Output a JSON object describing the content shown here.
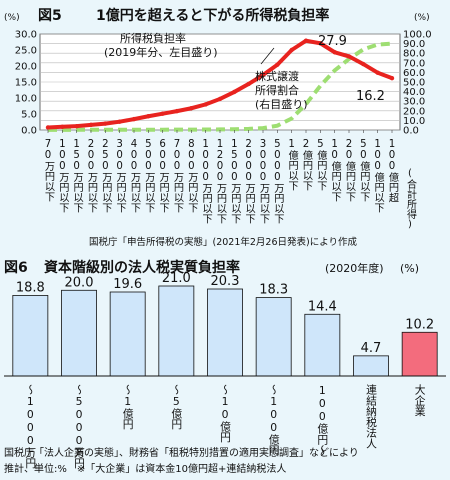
{
  "chart_data": [
    {
      "type": "line",
      "figure_no": "図5",
      "title": "1億円を超えると下がる所得税負担率",
      "left_axis_unit": "(%)",
      "right_axis_unit": "(%)",
      "ylim_left": [
        0,
        30
      ],
      "ylim_right": [
        0,
        100
      ],
      "left_ticks": [
        "30.0",
        "25.0",
        "20.0",
        "15.0",
        "10.0",
        "5.0",
        "0.0"
      ],
      "right_ticks": [
        "100.0",
        "90.0",
        "80.0",
        "70.0",
        "60.0",
        "50.0",
        "40.0",
        "30.0",
        "20.0",
        "10.0",
        "0.0"
      ],
      "categories": [
        "70万円以下",
        "100万円以下",
        "150万円以下",
        "200万円以下",
        "250万円以下",
        "300万円以下",
        "400万円以下",
        "500万円以下",
        "600万円以下",
        "700万円以下",
        "800万円以下",
        "1000万円以下",
        "1200万円以下",
        "1500万円以下",
        "2000万円以下",
        "3000万円以下",
        "5000万円以下",
        "1億円以下",
        "2億円以下",
        "5億円以下",
        "10億円以下",
        "20億円以下",
        "50億円以下",
        "100億円以下",
        "100億円超"
      ],
      "xlabel_extra": "(合計所得)",
      "series": [
        {
          "label_lines": [
            "所得税負担率",
            "(2019年分、左目盛り)"
          ],
          "color": "#e8231f",
          "axis": "left",
          "values": [
            0.8,
            1.0,
            1.2,
            1.6,
            2.0,
            2.6,
            3.4,
            4.3,
            5.1,
            5.9,
            6.8,
            8.0,
            9.7,
            11.9,
            14.4,
            17.2,
            20.4,
            25.0,
            27.9,
            27.1,
            24.3,
            23.0,
            20.6,
            17.9,
            16.2
          ]
        },
        {
          "label_lines": [
            "株式譲渡",
            "所得割合",
            "(右目盛り)"
          ],
          "color": "#9ede72",
          "axis": "right",
          "values": [
            0.1,
            0.1,
            0.2,
            0.2,
            0.2,
            0.2,
            0.3,
            0.3,
            0.3,
            0.4,
            0.4,
            0.5,
            0.6,
            0.8,
            1.2,
            2.0,
            4.5,
            12.0,
            27.0,
            46.0,
            62.0,
            74.0,
            84.0,
            89.0,
            90.0
          ]
        }
      ],
      "annotations": {
        "peak": "27.9",
        "last": "16.2"
      },
      "source": "国税庁「申告所得税の実態」(2021年2月26日発表)により作成"
    },
    {
      "type": "bar",
      "figure_no": "図6",
      "title": "資本階級別の法人税実質負担率",
      "title_suffix": "(2020年度)",
      "unit": "(%)",
      "categories": [
        "〜1000万円",
        "〜5000万円",
        "〜1億円",
        "〜5億円",
        "〜10億円",
        "〜100億円",
        "100億円〜",
        "連結納税法人",
        "大企業"
      ],
      "values": [
        18.8,
        20.0,
        19.6,
        21.0,
        20.3,
        18.3,
        14.4,
        4.7,
        10.2
      ],
      "value_labels": [
        "18.8",
        "20.0",
        "19.6",
        "21.0",
        "20.3",
        "18.3",
        "14.4",
        "4.7",
        "10.2"
      ],
      "colors": [
        "#cfe6fa",
        "#cfe6fa",
        "#cfe6fa",
        "#cfe6fa",
        "#cfe6fa",
        "#cfe6fa",
        "#cfe6fa",
        "#cfe6fa",
        "#f36c7d"
      ],
      "footnote_lines": [
        "国税庁「法人企業の実態」、財務省「租税特別措置の適用実態調査」などにより",
        "推計、単位:%　※「大企業」は資本金10億円超+連結納税法人"
      ]
    }
  ]
}
